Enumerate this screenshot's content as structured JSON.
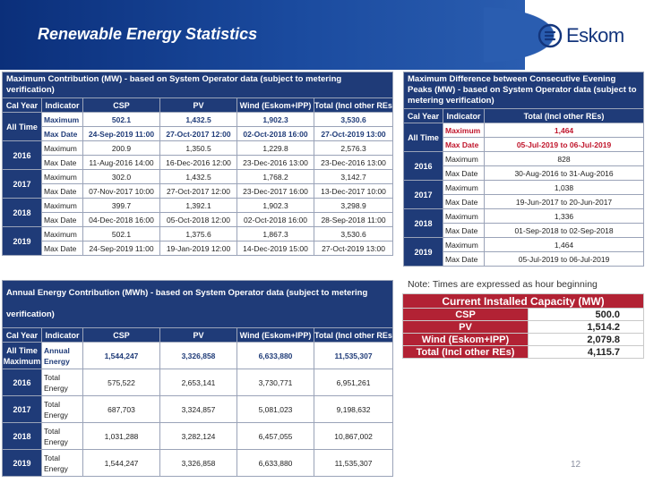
{
  "header": {
    "title": "Renewable Energy Statistics",
    "logo_text": "Eskom",
    "logo_icon": "eskom-logo-icon"
  },
  "max_contribution": {
    "title": "Maximum Contribution (MW) - based on System Operator data (subject to metering verification)",
    "columns": [
      "Cal Year",
      "Indicator",
      "CSP",
      "PV",
      "Wind (Eskom+IPP)",
      "Total (Incl other REs)"
    ],
    "groups": [
      {
        "year": "All Time",
        "rows": [
          {
            "indicator": "Maximum",
            "values": [
              "502.1",
              "1,432.5",
              "1,902.3",
              "3,530.6"
            ]
          },
          {
            "indicator": "Max Date",
            "values": [
              "24-Sep-2019 11:00",
              "27-Oct-2017 12:00",
              "02-Oct-2018 16:00",
              "27-Oct-2019 13:00"
            ]
          }
        ]
      },
      {
        "year": "2016",
        "rows": [
          {
            "indicator": "Maximum",
            "values": [
              "200.9",
              "1,350.5",
              "1,229.8",
              "2,576.3"
            ]
          },
          {
            "indicator": "Max Date",
            "values": [
              "11-Aug-2016 14:00",
              "16-Dec-2016 12:00",
              "23-Dec-2016 13:00",
              "23-Dec-2016 13:00"
            ]
          }
        ]
      },
      {
        "year": "2017",
        "rows": [
          {
            "indicator": "Maximum",
            "values": [
              "302.0",
              "1,432.5",
              "1,768.2",
              "3,142.7"
            ]
          },
          {
            "indicator": "Max Date",
            "values": [
              "07-Nov-2017 10:00",
              "27-Oct-2017 12:00",
              "23-Dec-2017 16:00",
              "13-Dec-2017 10:00"
            ]
          }
        ]
      },
      {
        "year": "2018",
        "rows": [
          {
            "indicator": "Maximum",
            "values": [
              "399.7",
              "1,392.1",
              "1,902.3",
              "3,298.9"
            ]
          },
          {
            "indicator": "Max Date",
            "values": [
              "04-Dec-2018 16:00",
              "05-Oct-2018 12:00",
              "02-Oct-2018 16:00",
              "28-Sep-2018 11:00"
            ]
          }
        ]
      },
      {
        "year": "2019",
        "rows": [
          {
            "indicator": "Maximum",
            "values": [
              "502.1",
              "1,375.6",
              "1,867.3",
              "3,530.6"
            ]
          },
          {
            "indicator": "Max Date",
            "values": [
              "24-Sep-2019 11:00",
              "19-Jan-2019 12:00",
              "14-Dec-2019 15:00",
              "27-Oct-2019 13:00"
            ]
          }
        ]
      }
    ]
  },
  "max_difference": {
    "title": "Maximum Difference between Consecutive Evening Peaks (MW) - based on System Operator data (subject to metering verification)",
    "columns": [
      "Cal Year",
      "Indicator",
      "Total (Incl other REs)"
    ],
    "groups": [
      {
        "year": "All Time",
        "rows": [
          {
            "indicator": "Maximum",
            "value": "1,464"
          },
          {
            "indicator": "Max Date",
            "value": "05-Jul-2019 to 06-Jul-2019"
          }
        ]
      },
      {
        "year": "2016",
        "rows": [
          {
            "indicator": "Maximum",
            "value": "828"
          },
          {
            "indicator": "Max Date",
            "value": "30-Aug-2016 to 31-Aug-2016"
          }
        ]
      },
      {
        "year": "2017",
        "rows": [
          {
            "indicator": "Maximum",
            "value": "1,038"
          },
          {
            "indicator": "Max Date",
            "value": "19-Jun-2017 to 20-Jun-2017"
          }
        ]
      },
      {
        "year": "2018",
        "rows": [
          {
            "indicator": "Maximum",
            "value": "1,336"
          },
          {
            "indicator": "Max Date",
            "value": "01-Sep-2018 to 02-Sep-2018"
          }
        ]
      },
      {
        "year": "2019",
        "rows": [
          {
            "indicator": "Maximum",
            "value": "1,464"
          },
          {
            "indicator": "Max Date",
            "value": "05-Jul-2019 to 06-Jul-2019"
          }
        ]
      }
    ]
  },
  "annual_energy": {
    "title": "Annual Energy Contribution (MWh) - based on System Operator data (subject to metering verification)",
    "columns": [
      "Cal Year",
      "Indicator",
      "CSP",
      "PV",
      "Wind (Eskom+IPP)",
      "Total (Incl other REs)"
    ],
    "rows": [
      {
        "year": "All Time Maximum",
        "indicator": "Annual Energy",
        "values": [
          "1,544,247",
          "3,326,858",
          "6,633,880",
          "11,535,307"
        ]
      },
      {
        "year": "2016",
        "indicator": "Total Energy",
        "values": [
          "575,522",
          "2,653,141",
          "3,730,771",
          "6,951,261"
        ]
      },
      {
        "year": "2017",
        "indicator": "Total Energy",
        "values": [
          "687,703",
          "3,324,857",
          "5,081,023",
          "9,198,632"
        ]
      },
      {
        "year": "2018",
        "indicator": "Total Energy",
        "values": [
          "1,031,288",
          "3,282,124",
          "6,457,055",
          "10,867,002"
        ]
      },
      {
        "year": "2019",
        "indicator": "Total Energy",
        "values": [
          "1,544,247",
          "3,326,858",
          "6,633,880",
          "11,535,307"
        ]
      }
    ]
  },
  "note": "Note: Times are expressed as hour beginning",
  "capacity": {
    "title": "Current Installed Capacity (MW)",
    "rows": [
      {
        "label": "CSP",
        "value": "500.0"
      },
      {
        "label": "PV",
        "value": "1,514.2"
      },
      {
        "label": "Wind (Eskom+IPP)",
        "value": "2,079.8"
      },
      {
        "label": "Total (Incl other REs)",
        "value": "4,115.7"
      }
    ]
  },
  "page_number": "12",
  "colors": {
    "navy": "#1f3b78",
    "red": "#b22234",
    "accent_text": "#c0152b"
  }
}
